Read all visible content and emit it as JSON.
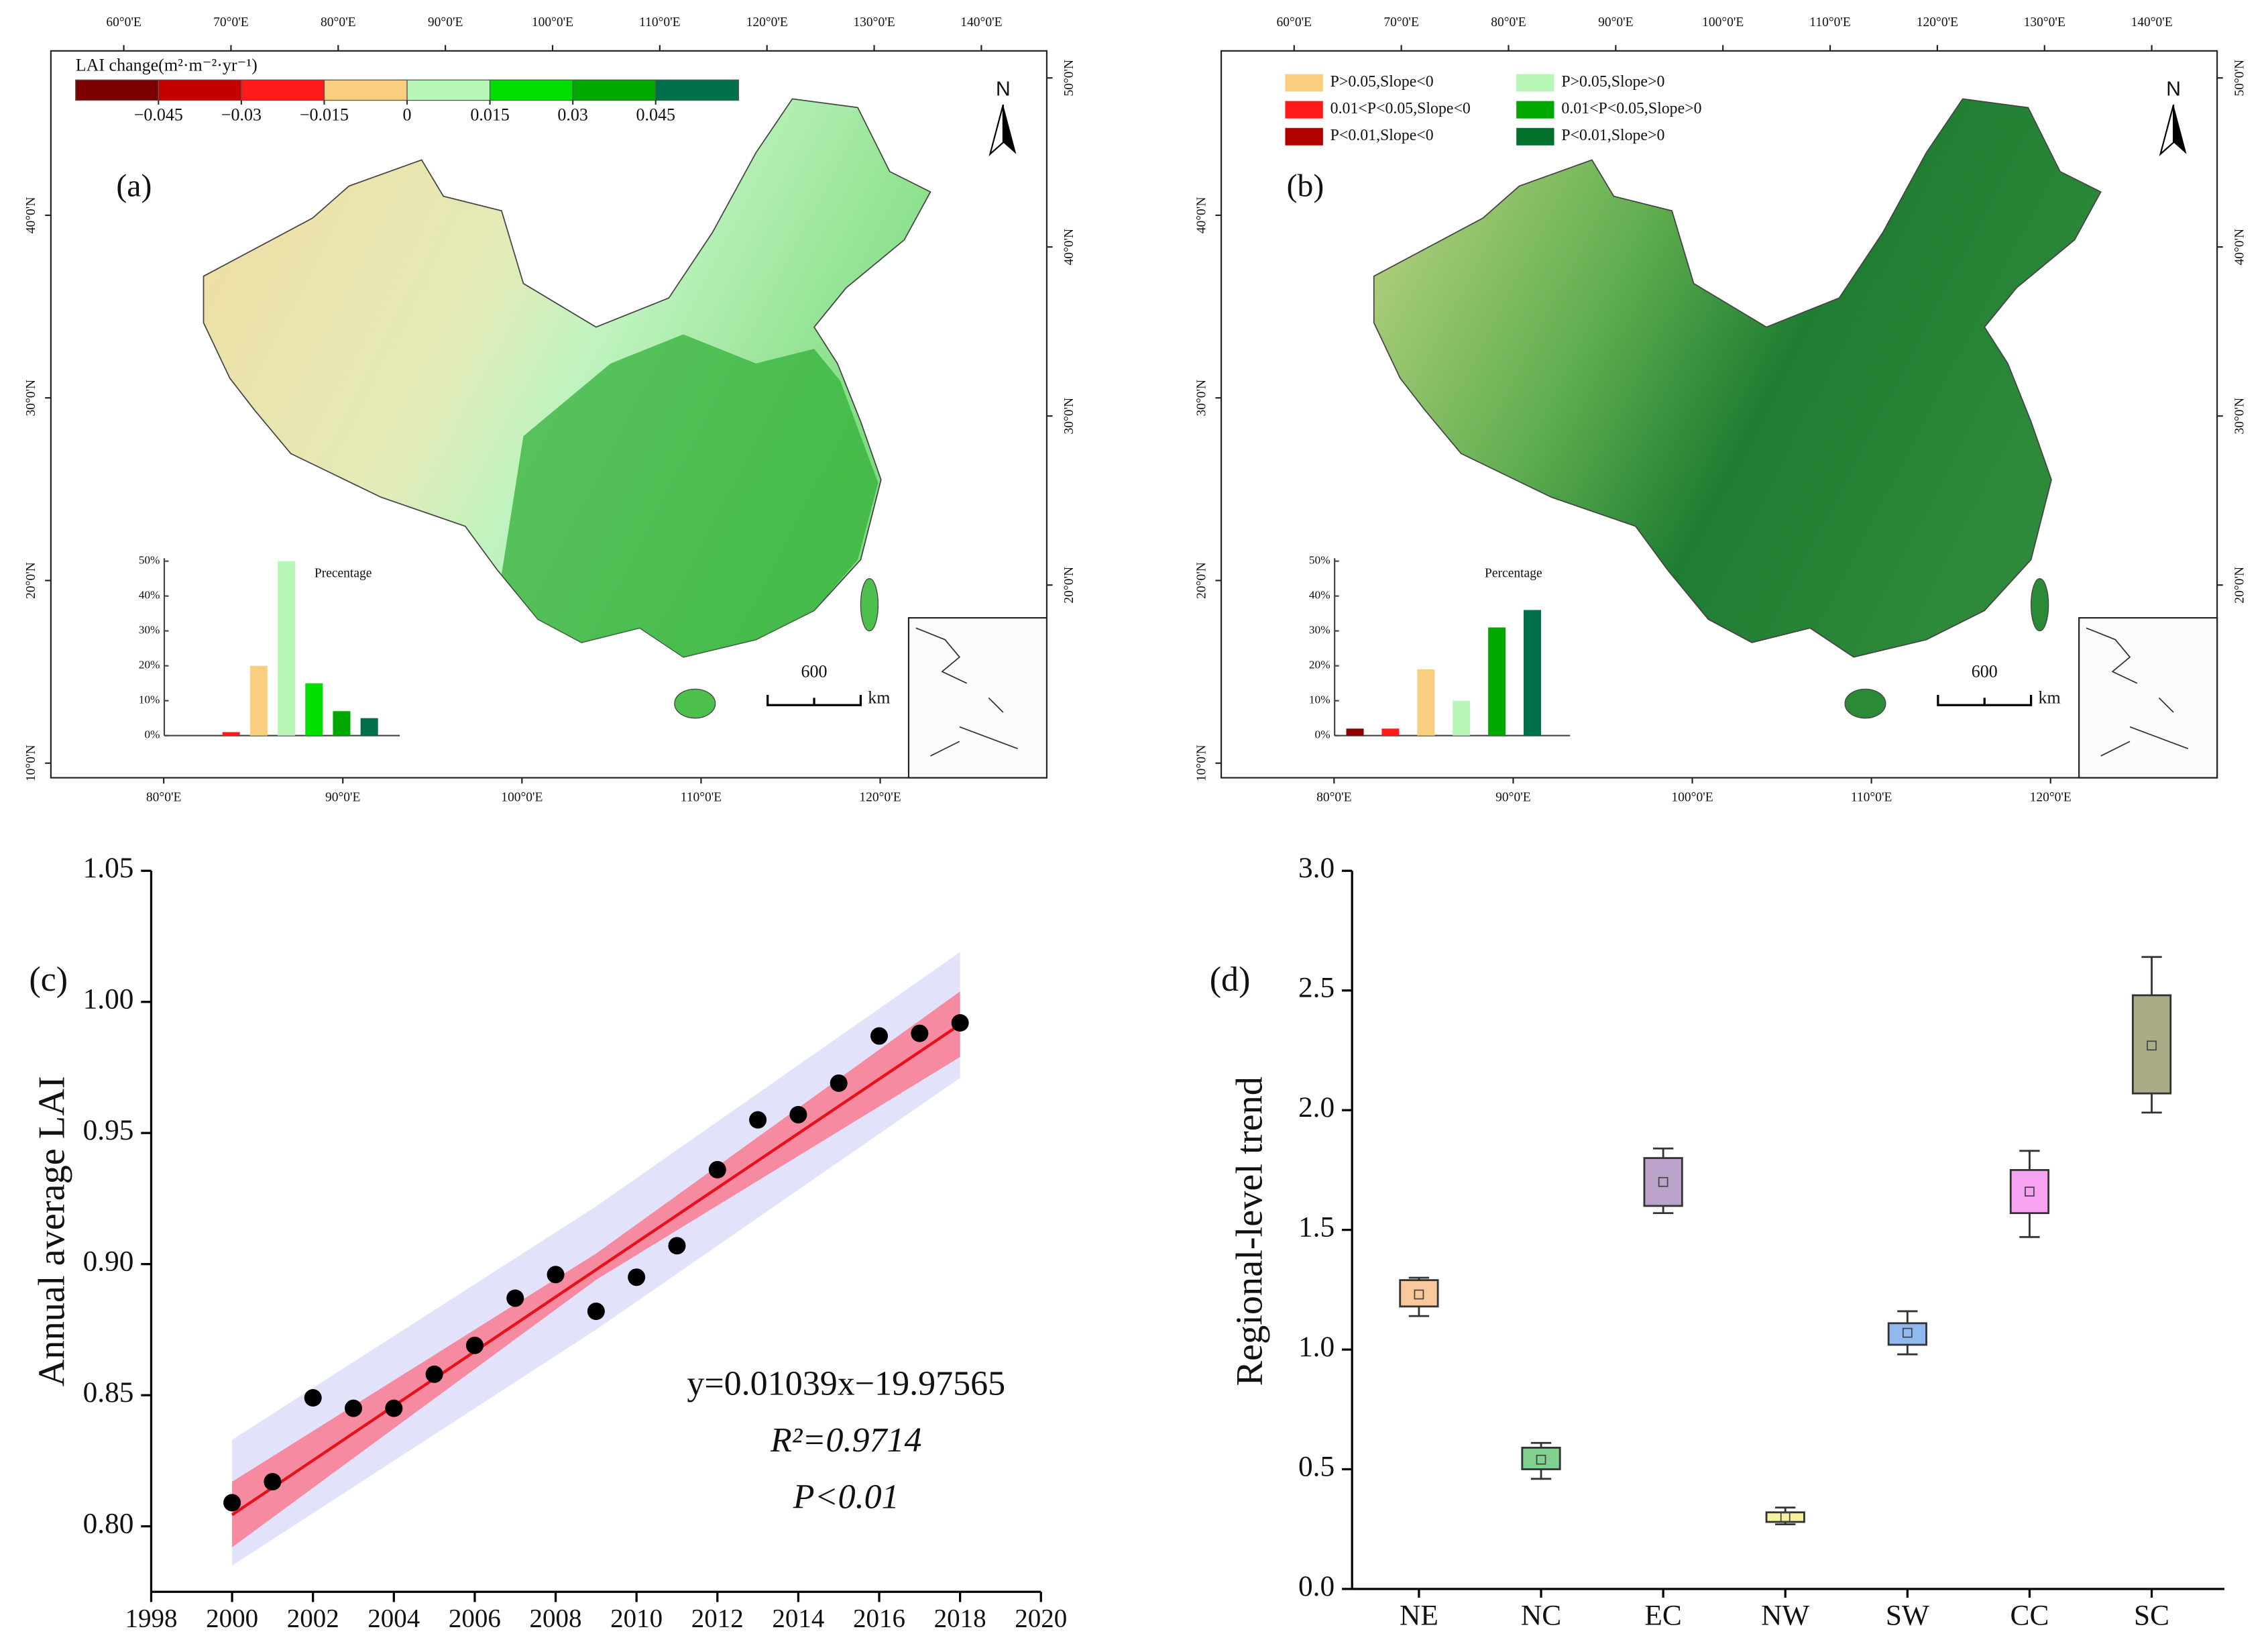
{
  "chart_data": [
    {
      "type": "map",
      "panel_label": "(a)",
      "top_ticks": [
        {
          "value": 60,
          "label": "60°0'E"
        },
        {
          "value": 70,
          "label": "70°0'E"
        },
        {
          "value": 80,
          "label": "80°0'E"
        },
        {
          "value": 90,
          "label": "90°0'E"
        },
        {
          "value": 100,
          "label": "100°0'E"
        },
        {
          "value": 110,
          "label": "110°0'E"
        },
        {
          "value": 120,
          "label": "120°0'E"
        },
        {
          "value": 130,
          "label": "130°0'E"
        },
        {
          "value": 140,
          "label": "140°0'E"
        }
      ],
      "top_lim": [
        53.2,
        146.1
      ],
      "bottom_ticks": [
        {
          "value": 80,
          "label": "80°0'E"
        },
        {
          "value": 90,
          "label": "90°0'E"
        },
        {
          "value": 100,
          "label": "100°0'E"
        },
        {
          "value": 110,
          "label": "110°0'E"
        },
        {
          "value": 120,
          "label": "120°0'E"
        }
      ],
      "bottom_lim": [
        73.7,
        129.3
      ],
      "left_ticks": [
        {
          "value": 40,
          "label": "40°0'N"
        },
        {
          "value": 30,
          "label": "30°0'N"
        },
        {
          "value": 20,
          "label": "20°0'N"
        },
        {
          "value": 10,
          "label": "10°0'N"
        }
      ],
      "left_lim": [
        49,
        9.2
      ],
      "right_ticks": [
        {
          "value": 50,
          "label": "50°0'N"
        },
        {
          "value": 40,
          "label": "40°0'N"
        },
        {
          "value": 30,
          "label": "30°0'N"
        },
        {
          "value": 20,
          "label": "20°0'N"
        }
      ],
      "right_lim": [
        51.6,
        8.6
      ],
      "north_label": "N",
      "scale_label": "600",
      "scale_unit": "km",
      "legend_title": "LAI change(m²·m⁻²·yr⁻¹)",
      "colorbar": {
        "colors": [
          "#7b0000",
          "#c40000",
          "#ff1a1a",
          "#f9cf7f",
          "#b8f7b8",
          "#00e000",
          "#00a800",
          "#00704a"
        ],
        "lim": [
          -0.06,
          0.06
        ],
        "ticks": [
          {
            "value": -0.045,
            "label": "−0.045"
          },
          {
            "value": -0.03,
            "label": "−0.03"
          },
          {
            "value": -0.015,
            "label": "−0.015"
          },
          0,
          0.015,
          0.03,
          0.045
        ]
      },
      "inset": {
        "type": "bar",
        "title": "Precentage",
        "values": [
          1,
          20,
          50,
          15,
          7,
          5
        ],
        "colors": [
          "#ff1a1a",
          "#f9cf7f",
          "#b8f7b8",
          "#00e000",
          "#00a800",
          "#00704a"
        ],
        "ylim": [
          0,
          50
        ],
        "yticks": [
          {
            "value": 0,
            "label": "0%"
          },
          {
            "value": 10,
            "label": "10%"
          },
          {
            "value": 20,
            "label": "20%"
          },
          {
            "value": 30,
            "label": "30%"
          },
          {
            "value": 40,
            "label": "40%"
          },
          {
            "value": 50,
            "label": "50%"
          }
        ]
      }
    },
    {
      "type": "map",
      "panel_label": "(b)",
      "top_ticks": [
        {
          "value": 60,
          "label": "60°0'E"
        },
        {
          "value": 70,
          "label": "70°0'E"
        },
        {
          "value": 80,
          "label": "80°0'E"
        },
        {
          "value": 90,
          "label": "90°0'E"
        },
        {
          "value": 100,
          "label": "100°0'E"
        },
        {
          "value": 110,
          "label": "110°0'E"
        },
        {
          "value": 120,
          "label": "120°0'E"
        },
        {
          "value": 130,
          "label": "130°0'E"
        },
        {
          "value": 140,
          "label": "140°0'E"
        }
      ],
      "top_lim": [
        53.2,
        146.1
      ],
      "bottom_ticks": [
        {
          "value": 80,
          "label": "80°0'E"
        },
        {
          "value": 90,
          "label": "90°0'E"
        },
        {
          "value": 100,
          "label": "100°0'E"
        },
        {
          "value": 110,
          "label": "110°0'E"
        },
        {
          "value": 120,
          "label": "120°0'E"
        }
      ],
      "bottom_lim": [
        73.7,
        129.3
      ],
      "left_ticks": [
        {
          "value": 40,
          "label": "40°0'N"
        },
        {
          "value": 30,
          "label": "30°0'N"
        },
        {
          "value": 20,
          "label": "20°0'N"
        },
        {
          "value": 10,
          "label": "10°0'N"
        }
      ],
      "left_lim": [
        49,
        9.2
      ],
      "right_ticks": [
        {
          "value": 50,
          "label": "50°0'N"
        },
        {
          "value": 40,
          "label": "40°0'N"
        },
        {
          "value": 30,
          "label": "30°0'N"
        },
        {
          "value": 20,
          "label": "20°0'N"
        }
      ],
      "right_lim": [
        51.6,
        8.6
      ],
      "north_label": "N",
      "scale_label": "600",
      "scale_unit": "km",
      "legend": {
        "labels": [
          "P>0.05,Slope<0",
          "0.01<P<0.05,Slope<0",
          "P<0.01,Slope<0",
          "P>0.05,Slope>0",
          "0.01<P<0.05,Slope>0",
          "P<0.01,Slope>0"
        ],
        "colors": [
          "#f9cf7f",
          "#ff1a1a",
          "#b00000",
          "#b8f7b8",
          "#00a800",
          "#00702a"
        ]
      },
      "inset": {
        "type": "bar",
        "title": "Percentage",
        "values": [
          2,
          2,
          19,
          10,
          31,
          36
        ],
        "colors": [
          "#8b0000",
          "#ff1a1a",
          "#f9cf7f",
          "#b8f7b8",
          "#00a800",
          "#00704a"
        ],
        "ylim": [
          0,
          50
        ],
        "yticks": [
          {
            "value": 0,
            "label": "0%"
          },
          {
            "value": 10,
            "label": "10%"
          },
          {
            "value": 20,
            "label": "20%"
          },
          {
            "value": 30,
            "label": "30%"
          },
          {
            "value": 40,
            "label": "40%"
          },
          {
            "value": 50,
            "label": "50%"
          }
        ]
      }
    },
    {
      "type": "scatter",
      "panel_label": "(c)",
      "y_label": "Annual average LAI",
      "x": [
        2000,
        2001,
        2002,
        2003,
        2004,
        2005,
        2006,
        2007,
        2008,
        2009,
        2010,
        2011,
        2012,
        2013,
        2014,
        2015,
        2016,
        2017,
        2018
      ],
      "values": [
        0.809,
        0.817,
        0.849,
        0.845,
        0.845,
        0.858,
        0.869,
        0.887,
        0.896,
        0.882,
        0.895,
        0.907,
        0.936,
        0.955,
        0.957,
        0.969,
        0.987,
        0.988,
        0.992
      ],
      "color": "#000000",
      "fit": {
        "slope": 0.01039,
        "intercept": -19.97565,
        "color": "#e8101a"
      },
      "confidence_band": {
        "x": [
          2000,
          2009,
          2018
        ],
        "lower": [
          0.792,
          0.894,
          0.979
        ],
        "upper": [
          0.817,
          0.904,
          1.004
        ],
        "color": "#f58aa0"
      },
      "prediction_band": {
        "x": [
          2000,
          2009,
          2018
        ],
        "lower": [
          0.785,
          0.875,
          0.971
        ],
        "upper": [
          0.833,
          0.922,
          1.019
        ],
        "color": "#e2e2fb"
      },
      "annotations": [
        "y=0.01039x−19.97565",
        "R²=0.9714",
        "P<0.01"
      ],
      "xlim": [
        1998,
        2020
      ],
      "xticks": [
        1998,
        2000,
        2002,
        2004,
        2006,
        2008,
        2010,
        2012,
        2014,
        2016,
        2018,
        2020
      ],
      "ylim": [
        0.775,
        1.05
      ],
      "yticks": [
        {
          "value": 0.8,
          "label": "0.80"
        },
        {
          "value": 0.85,
          "label": "0.85"
        },
        {
          "value": 0.9,
          "label": "0.90"
        },
        {
          "value": 0.95,
          "label": "0.95"
        },
        {
          "value": 1.0,
          "label": "1.00"
        },
        {
          "value": 1.05,
          "label": "1.05"
        }
      ]
    },
    {
      "type": "box",
      "panel_label": "(d)",
      "y_label": "Regional-level trend",
      "categories": [
        "NE",
        "NC",
        "EC",
        "NW",
        "SW",
        "CC",
        "SC"
      ],
      "whisker_low": [
        1.14,
        0.46,
        1.57,
        0.27,
        0.98,
        1.47,
        1.99
      ],
      "q1": [
        1.18,
        0.5,
        1.6,
        0.28,
        1.02,
        1.57,
        2.07
      ],
      "mean": [
        1.23,
        0.54,
        1.7,
        0.3,
        1.07,
        1.66,
        2.27
      ],
      "q3": [
        1.29,
        0.59,
        1.8,
        0.32,
        1.11,
        1.75,
        2.48
      ],
      "whisker_high": [
        1.3,
        0.61,
        1.84,
        0.34,
        1.16,
        1.83,
        2.64
      ],
      "colors": [
        "#f9c89b",
        "#80d090",
        "#bba3cc",
        "#f6f2a4",
        "#8fb9ef",
        "#f7a3f2",
        "#a9ac87"
      ],
      "ylim": [
        0,
        3
      ],
      "yticks": [
        {
          "value": 0,
          "label": "0.0"
        },
        {
          "value": 0.5,
          "label": "0.5"
        },
        {
          "value": 1,
          "label": "1.0"
        },
        {
          "value": 1.5,
          "label": "1.5"
        },
        {
          "value": 2,
          "label": "2.0"
        },
        {
          "value": 2.5,
          "label": "2.5"
        },
        {
          "value": 3,
          "label": "3.0"
        }
      ]
    }
  ]
}
